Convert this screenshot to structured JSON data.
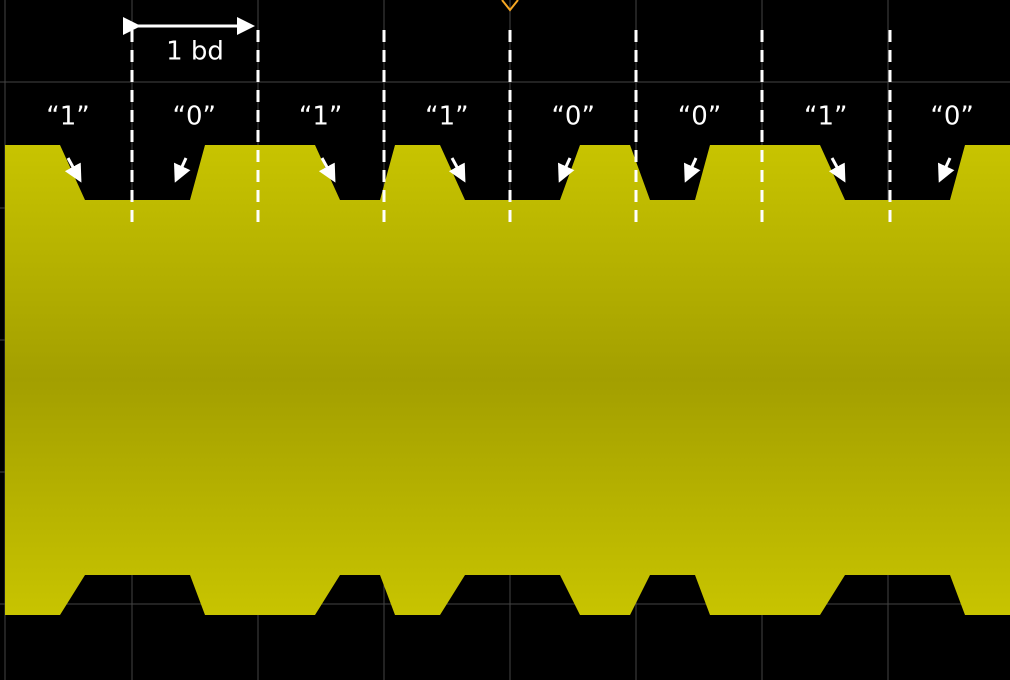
{
  "scale_label": "1 bd",
  "bits": [
    "“1”",
    "“0”",
    "“1”",
    "“1”",
    "“0”",
    "“0”",
    "“1”",
    "“0”"
  ]
}
